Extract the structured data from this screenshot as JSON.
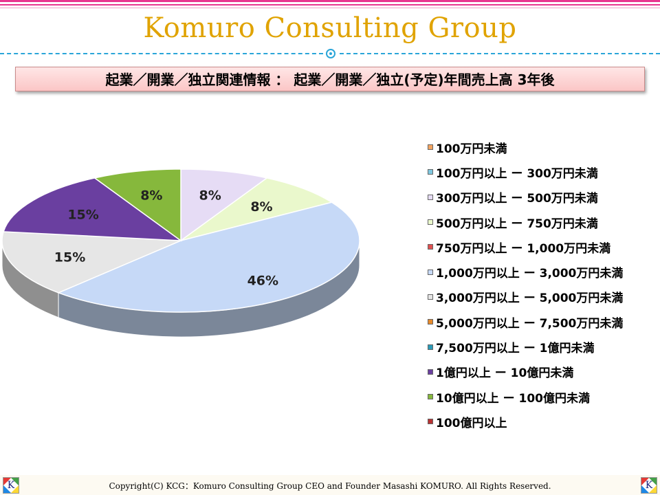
{
  "header": {
    "title": "Komuro Consulting Group",
    "subtitle": "起業／開業／独立関連情報 ： 起業／開業／独立(予定)年間売上高 3年後"
  },
  "footer": {
    "copyright": "Copyright(C) KCG：Komuro Consulting Group CEO and Founder Masashi KOMURO. All Rights Reserved.",
    "logo_letter": "K"
  },
  "chart_data": {
    "type": "pie",
    "title": "",
    "categories": [
      "100万円未満",
      "100万円以上 ー 300万円未満",
      "300万円以上 ー 500万円未満",
      "500万円以上 ー 750万円未満",
      "750万円以上 ー 1,000万円未満",
      "1,000万円以上 ー 3,000万円未満",
      "3,000万円以上 ー 5,000万円未満",
      "5,000万円以上 ー 7,500万円未満",
      "7,500万円以上 ー 1億円未満",
      "1億円以上 ー 10億円未満",
      "10億円以上 ー 100億円未満",
      "100億円以上"
    ],
    "values": [
      0,
      0,
      8,
      8,
      0,
      46,
      15,
      0,
      0,
      15,
      8,
      0
    ],
    "value_labels": [
      "",
      "",
      "8%",
      "8%",
      "",
      "46%",
      "15%",
      "",
      "",
      "15%",
      "8%",
      ""
    ],
    "colors": [
      "#f4a460",
      "#7fc8e0",
      "#e6dcf5",
      "#eaf8cc",
      "#e05050",
      "#c6d9f7",
      "#e6e6e6",
      "#e88a2a",
      "#2a9bb8",
      "#6a3fa0",
      "#86b83c",
      "#b83232"
    ],
    "legend_position": "right",
    "style": "3d-pie"
  }
}
